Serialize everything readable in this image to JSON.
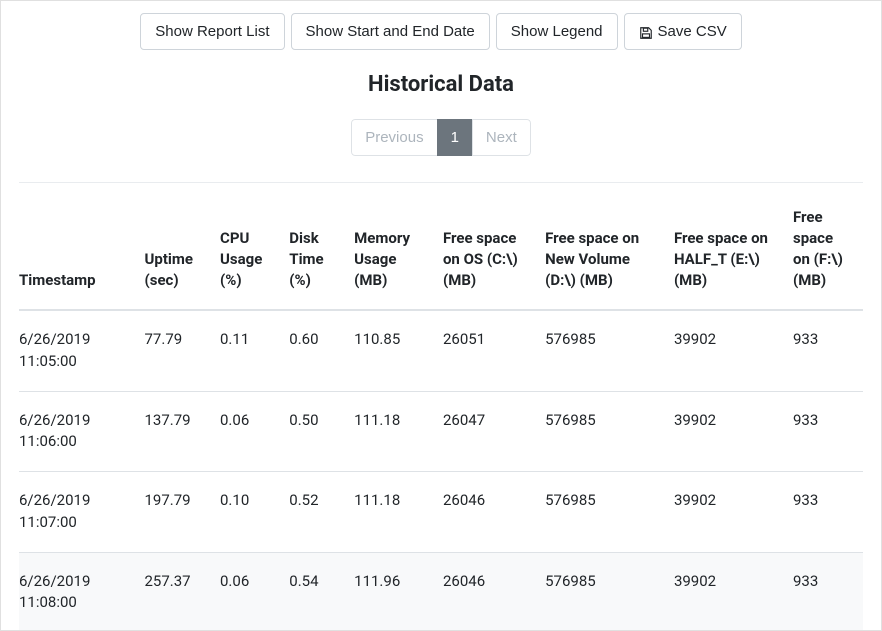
{
  "buttons": {
    "show_report_list": "Show Report List",
    "show_start_end_date": "Show Start and End Date",
    "show_legend": "Show Legend",
    "save_csv": "Save CSV"
  },
  "title": "Historical Data",
  "pagination": {
    "previous": "Previous",
    "page1": "1",
    "next": "Next"
  },
  "table": {
    "columns": [
      "Timestamp",
      "Uptime (sec)",
      "CPU Usage (%)",
      "Disk Time (%)",
      "Memory Usage (MB)",
      "Free space on OS (C:\\) (MB)",
      "Free space on New Volume (D:\\) (MB)",
      "Free space on HALF_T (E:\\) (MB)",
      "Free space on (F:\\) (MB)"
    ],
    "rows": [
      [
        "6/26/2019 11:05:00",
        "77.79",
        "0.11",
        "0.60",
        "110.85",
        "26051",
        "576985",
        "39902",
        "933"
      ],
      [
        "6/26/2019 11:06:00",
        "137.79",
        "0.06",
        "0.50",
        "111.18",
        "26047",
        "576985",
        "39902",
        "933"
      ],
      [
        "6/26/2019 11:07:00",
        "197.79",
        "0.10",
        "0.52",
        "111.18",
        "26046",
        "576985",
        "39902",
        "933"
      ],
      [
        "6/26/2019 11:08:00",
        "257.37",
        "0.06",
        "0.54",
        "111.96",
        "26046",
        "576985",
        "39902",
        "933"
      ]
    ],
    "column_widths_pct": [
      13,
      8.5,
      7.8,
      7.3,
      10,
      11.5,
      14.5,
      13.4,
      9
    ],
    "striped_rows": [
      3
    ]
  },
  "colors": {
    "text": "#212529",
    "muted": "#6c757d",
    "disabled": "#adb5bd",
    "border": "#ced4da",
    "row_border": "#dee2e6",
    "stripe": "#f8f9fa",
    "active_bg": "#6c757d",
    "active_fg": "#ffffff",
    "background": "#ffffff"
  }
}
